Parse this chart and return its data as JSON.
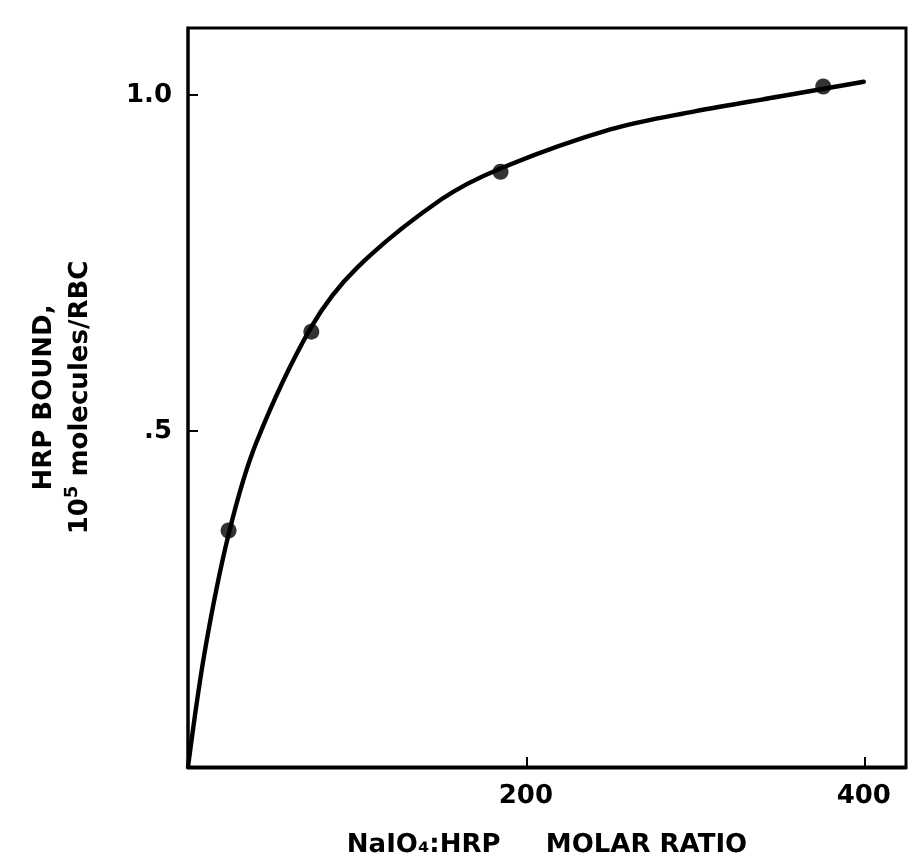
{
  "chart_data": {
    "type": "scatter",
    "xlabel": "NaIO₄:HRP     MOLAR RATIO",
    "ylabel": "HRP BOUND,\n10$^{5}$ molecules/RBC",
    "series": [
      {
        "color": "#000000",
        "marker": "circle",
        "x": [
          24,
          73,
          185,
          376
        ],
        "values": [
          0.352,
          0.648,
          0.886,
          1.013
        ]
      },
      {
        "type": "line",
        "color": "#000000",
        "marker": "none",
        "line_style": "solid",
        "x": [
          0,
          10,
          24,
          40,
          73,
          100,
          150,
          185,
          250,
          300,
          350,
          400
        ],
        "values": [
          0,
          0.173,
          0.346,
          0.48,
          0.655,
          0.743,
          0.845,
          0.891,
          0.949,
          0.976,
          0.998,
          1.02
        ]
      }
    ],
    "xlim": [
      0,
      425
    ],
    "xticks": [
      200,
      400
    ],
    "ylim": [
      0,
      1.1
    ],
    "yticks": [
      {
        "value": 0.5,
        "label": ".5"
      },
      {
        "value": 1,
        "label": "1.0"
      }
    ],
    "grid": false
  }
}
